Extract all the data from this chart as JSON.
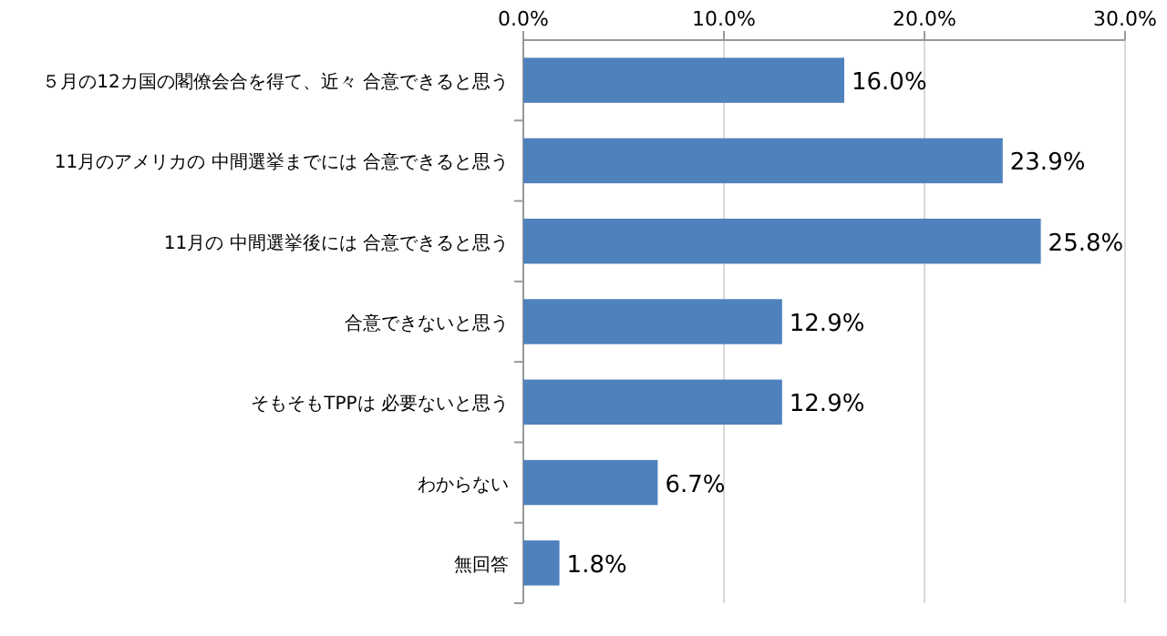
{
  "chart_data": {
    "type": "bar",
    "orientation": "horizontal",
    "categories": [
      "５月の12カ国の閣僚会合を得て、近々 合意できると思う",
      "11月のアメリカの 中間選挙までには 合意できると思う",
      "11月の 中間選挙後には 合意できると思う",
      "合意できないと思う",
      "そもそもTPPは 必要ないと思う",
      "わからない",
      "無回答"
    ],
    "values": [
      16.0,
      23.9,
      25.8,
      12.9,
      12.9,
      6.7,
      1.8
    ],
    "value_labels": [
      "16.0%",
      "23.9%",
      "25.8%",
      "12.9%",
      "12.9%",
      "6.7%",
      "1.8%"
    ],
    "color": "#4f81bd",
    "xlim": [
      0,
      30
    ],
    "xticks": [
      {
        "value": 0,
        "label": "0.0%"
      },
      {
        "value": 10,
        "label": "10.0%"
      },
      {
        "value": 20,
        "label": "20.0%"
      },
      {
        "value": 30,
        "label": "30.0%"
      }
    ],
    "grid": "x"
  }
}
